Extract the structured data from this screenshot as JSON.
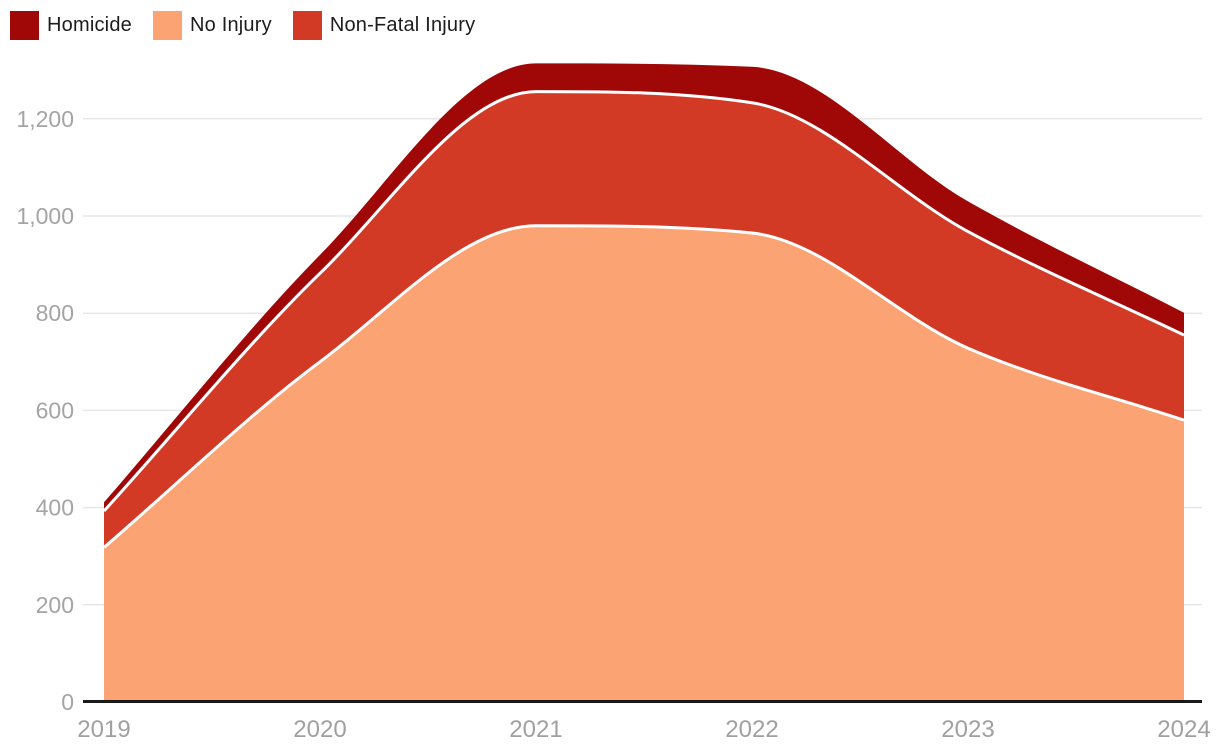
{
  "legend": {
    "items": [
      {
        "label": "Homicide",
        "color": "#a00707"
      },
      {
        "label": "No Injury",
        "color": "#fca374"
      },
      {
        "label": "Non-Fatal Injury",
        "color": "#d23a26"
      }
    ]
  },
  "chart_data": {
    "type": "area",
    "stacked": true,
    "title": "",
    "xlabel": "",
    "ylabel": "",
    "x": [
      2019,
      2020,
      2021,
      2022,
      2023,
      2024
    ],
    "x_tick_labels": [
      "2019",
      "2020",
      "2021",
      "2022",
      "2023",
      "2024"
    ],
    "series": [
      {
        "name": "No Injury",
        "color": "#fca374",
        "values": [
          318,
          700,
          980,
          965,
          728,
          580
        ]
      },
      {
        "name": "Non-Fatal Injury",
        "color": "#d23a26",
        "values": [
          75,
          182,
          276,
          268,
          240,
          175
        ]
      },
      {
        "name": "Homicide",
        "color": "#a00707",
        "values": [
          18,
          38,
          58,
          74,
          62,
          46
        ]
      }
    ],
    "stacked_totals": [
      411,
      920,
      1314,
      1307,
      1030,
      801
    ],
    "y_ticks": [
      {
        "value": 0,
        "label": "0"
      },
      {
        "value": 200,
        "label": "200"
      },
      {
        "value": 400,
        "label": "400"
      },
      {
        "value": 600,
        "label": "600"
      },
      {
        "value": 800,
        "label": "800"
      },
      {
        "value": 1000,
        "label": "1,000"
      },
      {
        "value": 1200,
        "label": "1,200"
      }
    ],
    "ylim": [
      0,
      1400
    ],
    "grid": true,
    "legend_position": "top-left",
    "curve": "smooth",
    "separator_color": "#ffffff",
    "axis": {
      "baseline_color": "#1a1a1a",
      "grid_color": "#e7e7e7",
      "y_tick_color": "#a4a4a4",
      "x_tick_color": "#a0a0a0"
    }
  }
}
